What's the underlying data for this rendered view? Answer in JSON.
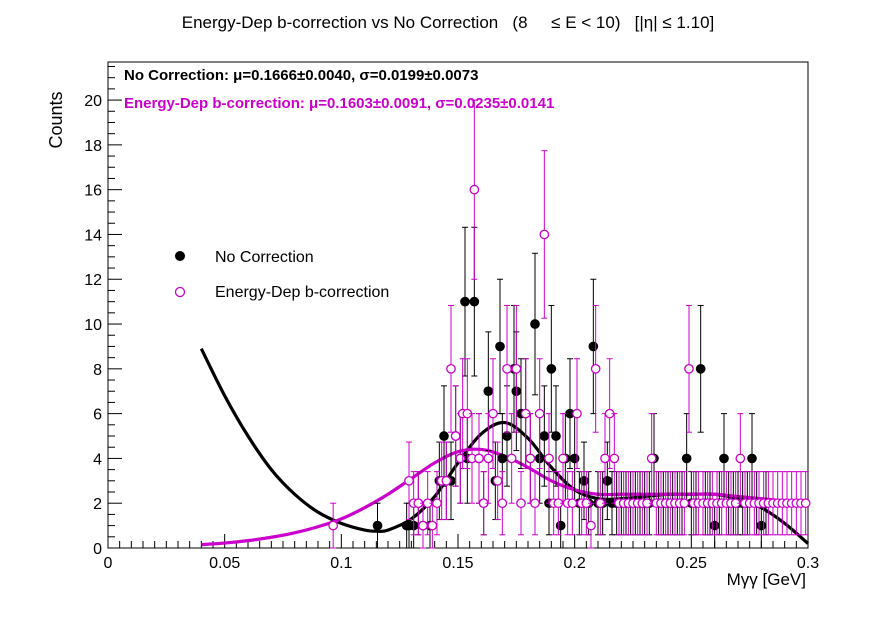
{
  "chart_data": {
    "type": "scatter",
    "title": "Energy-Dep b-correction vs No Correction   (8     ≤ E < 10)   [|η| ≤ 1.10]",
    "xlabel": "Mγγ [GeV]",
    "ylabel": "Counts",
    "xlim": [
      0,
      0.3
    ],
    "ylim": [
      0,
      21.7
    ],
    "x_ticks": [
      0,
      0.05,
      0.1,
      0.15,
      0.2,
      0.25,
      0.3
    ],
    "x_tick_labels": [
      "0",
      "0.05",
      "0.1",
      "0.15",
      "0.2",
      "0.25",
      "0.3"
    ],
    "y_ticks": [
      0,
      2,
      4,
      6,
      8,
      10,
      12,
      14,
      16,
      18,
      20
    ],
    "y_tick_labels": [
      "0",
      "2",
      "4",
      "6",
      "8",
      "10",
      "12",
      "14",
      "16",
      "18",
      "20"
    ],
    "legend_position": "center-left",
    "grid": false,
    "annotations": {
      "no_correction_fit": "No Correction:  μ=0.1666±0.0040,  σ=0.0199±0.0073",
      "energy_dep_fit": "Energy-Dep b-correction:  μ=0.1603±0.0091,  σ=0.0235±0.0141"
    },
    "series": [
      {
        "name": "No Correction",
        "color": "#000000",
        "marker": "filled-circle",
        "x": [
          0.1155,
          0.128,
          0.129,
          0.131,
          0.133,
          0.135,
          0.138,
          0.142,
          0.144,
          0.145,
          0.147,
          0.149,
          0.151,
          0.153,
          0.154,
          0.157,
          0.159,
          0.161,
          0.163,
          0.166,
          0.168,
          0.169,
          0.171,
          0.174,
          0.175,
          0.177,
          0.179,
          0.181,
          0.183,
          0.185,
          0.187,
          0.189,
          0.19,
          0.192,
          0.194,
          0.196,
          0.198,
          0.2,
          0.202,
          0.204,
          0.206,
          0.208,
          0.21,
          0.212,
          0.214,
          0.216,
          0.218,
          0.22,
          0.222,
          0.224,
          0.226,
          0.228,
          0.23,
          0.232,
          0.234,
          0.236,
          0.238,
          0.24,
          0.242,
          0.244,
          0.246,
          0.248,
          0.25,
          0.252,
          0.254,
          0.256,
          0.258,
          0.26,
          0.262,
          0.264,
          0.266,
          0.268,
          0.27,
          0.272,
          0.274,
          0.276,
          0.278,
          0.28,
          0.282
        ],
        "y": [
          1,
          1,
          1,
          1,
          2,
          1,
          1,
          3,
          5,
          3,
          3,
          5,
          4,
          11,
          4,
          11,
          4,
          2,
          7,
          3,
          9,
          4,
          5,
          8,
          7,
          6,
          6,
          4,
          10,
          4,
          5,
          2,
          8,
          5,
          1,
          4,
          6,
          4,
          2,
          3,
          2,
          9,
          2,
          2,
          3,
          2,
          2,
          2,
          2,
          2,
          2,
          2,
          2,
          2,
          4,
          2,
          2,
          2,
          2,
          2,
          2,
          4,
          2,
          2,
          8,
          2,
          2,
          1,
          2,
          4,
          2,
          2,
          2,
          2,
          2,
          4,
          2,
          1,
          2
        ],
        "err": [
          1,
          1,
          1,
          1,
          1.41,
          1,
          1,
          1.73,
          2.24,
          1.73,
          1.73,
          2.24,
          2,
          3.32,
          2,
          3.32,
          2,
          1.41,
          2.65,
          1.73,
          3,
          2,
          2.24,
          2.83,
          2.65,
          2.45,
          2.45,
          2,
          3.16,
          2,
          2.24,
          1.41,
          2.83,
          2.24,
          1,
          2,
          2.45,
          2,
          1.41,
          1.73,
          1.41,
          3,
          1.41,
          1.41,
          1.73,
          1.41,
          1.41,
          1.41,
          1.41,
          1.41,
          1.41,
          1.41,
          1.41,
          1.41,
          2,
          1.41,
          1.41,
          1.41,
          1.41,
          1.41,
          1.41,
          2,
          1.41,
          1.41,
          2.83,
          1.41,
          1.41,
          1,
          1.41,
          2,
          1.41,
          1.41,
          1.41,
          1.41,
          1.41,
          2,
          1.41,
          1,
          1.41
        ]
      },
      {
        "name": "Energy-Dep b-correction",
        "color": "#cc00cc",
        "marker": "open-circle",
        "x": [
          0.0965,
          0.129,
          0.131,
          0.133,
          0.135,
          0.137,
          0.139,
          0.141,
          0.143,
          0.145,
          0.147,
          0.149,
          0.151,
          0.152,
          0.154,
          0.156,
          0.157,
          0.159,
          0.161,
          0.163,
          0.165,
          0.167,
          0.169,
          0.171,
          0.173,
          0.175,
          0.177,
          0.179,
          0.181,
          0.183,
          0.185,
          0.187,
          0.189,
          0.191,
          0.193,
          0.195,
          0.197,
          0.199,
          0.201,
          0.203,
          0.205,
          0.207,
          0.209,
          0.211,
          0.213,
          0.215,
          0.217,
          0.219,
          0.221,
          0.223,
          0.225,
          0.227,
          0.229,
          0.231,
          0.233,
          0.235,
          0.237,
          0.239,
          0.241,
          0.243,
          0.245,
          0.247,
          0.249,
          0.251,
          0.253,
          0.255,
          0.257,
          0.259,
          0.261,
          0.263,
          0.265,
          0.267,
          0.269,
          0.271,
          0.273,
          0.275,
          0.277,
          0.279,
          0.281,
          0.283,
          0.285,
          0.287,
          0.289,
          0.291,
          0.293,
          0.295,
          0.297,
          0.299
        ],
        "y": [
          1,
          3,
          2,
          2,
          1,
          2,
          1,
          2,
          3,
          3,
          8,
          5,
          4,
          6,
          6,
          4,
          16,
          4,
          2,
          4,
          6,
          3,
          2,
          8,
          4,
          8,
          2,
          6,
          4,
          2,
          6,
          14,
          4,
          2,
          2,
          4,
          2,
          2,
          6,
          2,
          2,
          1,
          8,
          2,
          4,
          6,
          4,
          2,
          2,
          2,
          2,
          2,
          2,
          2,
          4,
          2,
          2,
          2,
          2,
          2,
          2,
          2,
          8,
          2,
          2,
          2,
          2,
          2,
          2,
          2,
          2,
          2,
          2,
          4,
          2,
          2,
          2,
          2,
          2,
          2,
          2,
          2,
          2,
          2,
          2,
          2,
          2,
          2
        ],
        "err": [
          1,
          1.73,
          1.41,
          1.41,
          1,
          1.41,
          1,
          1.41,
          1.73,
          1.73,
          2.83,
          2.24,
          2,
          2.45,
          2.45,
          2,
          4,
          2,
          1.41,
          2,
          2.45,
          1.73,
          1.41,
          2.83,
          2,
          2.83,
          1.41,
          2.45,
          2,
          1.41,
          2.45,
          3.74,
          2,
          1.41,
          1.41,
          2,
          1.41,
          1.41,
          2.45,
          1.41,
          1.41,
          1,
          2.83,
          1.41,
          2,
          2.45,
          2,
          1.41,
          1.41,
          1.41,
          1.41,
          1.41,
          1.41,
          1.41,
          2,
          1.41,
          1.41,
          1.41,
          1.41,
          1.41,
          1.41,
          1.41,
          2.83,
          1.41,
          1.41,
          1.41,
          1.41,
          1.41,
          1.41,
          1.41,
          1.41,
          1.41,
          1.41,
          2,
          1.41,
          1.41,
          1.41,
          1.41,
          1.41,
          1.41,
          1.41,
          1.41,
          1.41,
          1.41,
          1.41,
          1.41,
          1.41,
          1.41
        ]
      }
    ],
    "fits": [
      {
        "series": "No Correction",
        "color": "#000000",
        "x": [
          0.04,
          0.05,
          0.06,
          0.07,
          0.08,
          0.09,
          0.1,
          0.11,
          0.115,
          0.12,
          0.13,
          0.14,
          0.15,
          0.16,
          0.17,
          0.18,
          0.19,
          0.2,
          0.21,
          0.22,
          0.23,
          0.24,
          0.25,
          0.26,
          0.27,
          0.28,
          0.29,
          0.3
        ],
        "y": [
          8.9,
          6.8,
          5.0,
          3.5,
          2.4,
          1.6,
          1.1,
          0.8,
          0.75,
          0.8,
          1.3,
          2.3,
          3.8,
          5.1,
          5.6,
          4.9,
          3.6,
          2.6,
          2.2,
          2.2,
          2.3,
          2.4,
          2.4,
          2.4,
          2.2,
          1.8,
          1.1,
          0.2
        ]
      },
      {
        "series": "Energy-Dep b-correction",
        "color": "#cc00cc",
        "x": [
          0.04,
          0.05,
          0.06,
          0.07,
          0.08,
          0.09,
          0.1,
          0.11,
          0.12,
          0.13,
          0.14,
          0.15,
          0.16,
          0.17,
          0.18,
          0.19,
          0.2,
          0.21,
          0.22,
          0.23,
          0.24,
          0.25,
          0.26,
          0.27,
          0.28,
          0.29,
          0.3
        ],
        "y": [
          0.15,
          0.22,
          0.33,
          0.48,
          0.68,
          0.95,
          1.3,
          1.8,
          2.4,
          3.1,
          3.8,
          4.3,
          4.4,
          4.1,
          3.6,
          3.0,
          2.6,
          2.4,
          2.4,
          2.4,
          2.4,
          2.4,
          2.4,
          2.3,
          2.2,
          2.1,
          2.0
        ]
      }
    ]
  }
}
